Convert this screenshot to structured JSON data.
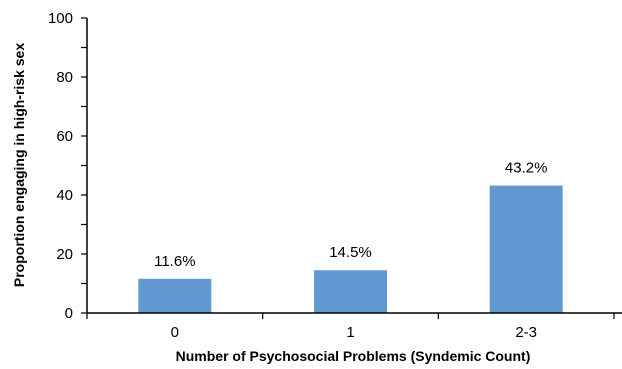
{
  "chart_data": {
    "type": "bar",
    "title": "",
    "xlabel": "Number of Psychosocial Problems (Syndemic Count)",
    "ylabel": "Proportion engaging in high-risk sex",
    "categories": [
      "0",
      "1",
      "2-3"
    ],
    "values": [
      11.6,
      14.5,
      43.2
    ],
    "data_labels": [
      "11.6%",
      "14.5%",
      "43.2%"
    ],
    "ylim": [
      0,
      100
    ],
    "yticks": [
      0,
      20,
      40,
      60,
      80,
      100
    ],
    "ytick_labels": [
      "0",
      "20",
      "40",
      "60",
      "80",
      "100"
    ],
    "y_minor_step": 10,
    "grid": false,
    "legend": "none",
    "bar_color": "#6198CF"
  }
}
